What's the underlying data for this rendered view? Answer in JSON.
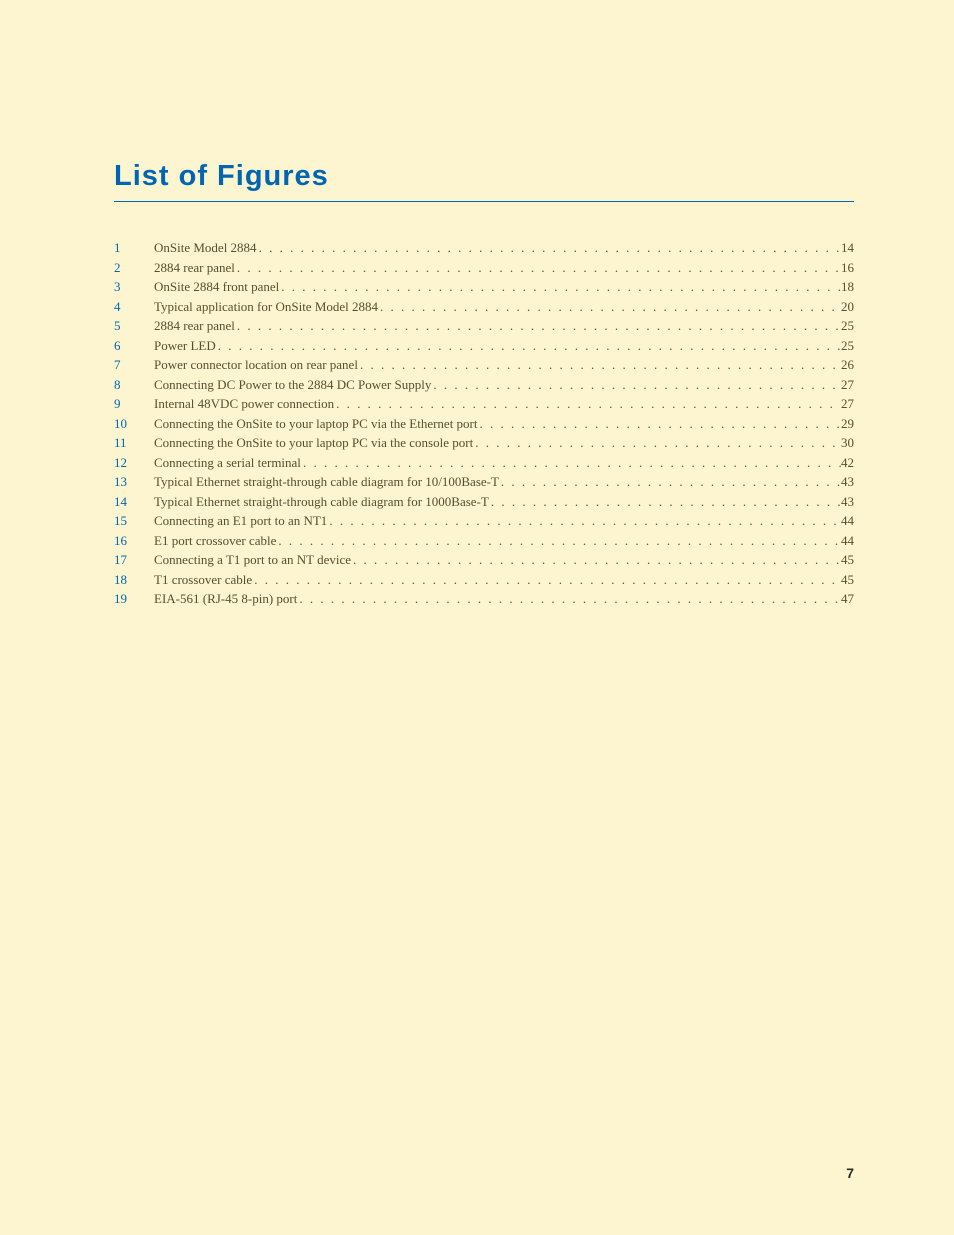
{
  "heading": "List of Figures",
  "page_number": "7",
  "colors": {
    "background": "#fdf5cf",
    "heading": "#0066b3",
    "number": "#0066b3",
    "text": "#584e32",
    "page_num": "#2a2a2a"
  },
  "typography": {
    "heading_font": "Arial Black / Futura Heavy",
    "heading_size_pt": 22,
    "body_font": "Georgia / Adobe Garamond",
    "body_size_pt": 10
  },
  "figures": [
    {
      "num": "1",
      "title": "OnSite Model 2884",
      "page": "14"
    },
    {
      "num": "2",
      "title": "2884 rear panel",
      "page": "16"
    },
    {
      "num": "3",
      "title": "OnSite 2884 front panel",
      "page": "18"
    },
    {
      "num": "4",
      "title": "Typical application for OnSite Model 2884",
      "page": "20"
    },
    {
      "num": "5",
      "title": "2884 rear panel",
      "page": "25"
    },
    {
      "num": "6",
      "title": "Power LED",
      "page": "25"
    },
    {
      "num": "7",
      "title": "Power connector location on rear panel ",
      "page": "26"
    },
    {
      "num": "8",
      "title": "Connecting DC Power to the 2884 DC Power Supply",
      "page": "27"
    },
    {
      "num": "9",
      "title": "Internal 48VDC power connection ",
      "page": "27"
    },
    {
      "num": "10",
      "title": "Connecting the OnSite to your laptop PC via the Ethernet port",
      "page": "29"
    },
    {
      "num": "11",
      "title": "Connecting the OnSite to your laptop PC via the console port",
      "page": "30"
    },
    {
      "num": "12",
      "title": "Connecting a serial terminal",
      "page": "42"
    },
    {
      "num": "13",
      "title": "Typical Ethernet straight-through cable diagram for 10/100Base-T ",
      "page": "43"
    },
    {
      "num": "14",
      "title": "Typical Ethernet straight-through cable diagram for 1000Base-T ",
      "page": "43"
    },
    {
      "num": "15",
      "title": "Connecting an E1 port to an NT1",
      "page": "44"
    },
    {
      "num": "16",
      "title": "E1 port crossover cable",
      "page": "44"
    },
    {
      "num": "17",
      "title": "Connecting a T1 port to an NT device",
      "page": "45"
    },
    {
      "num": "18",
      "title": "T1 crossover cable",
      "page": "45"
    },
    {
      "num": "19",
      "title": "EIA-561 (RJ-45 8-pin) port ",
      "page": "47"
    }
  ]
}
